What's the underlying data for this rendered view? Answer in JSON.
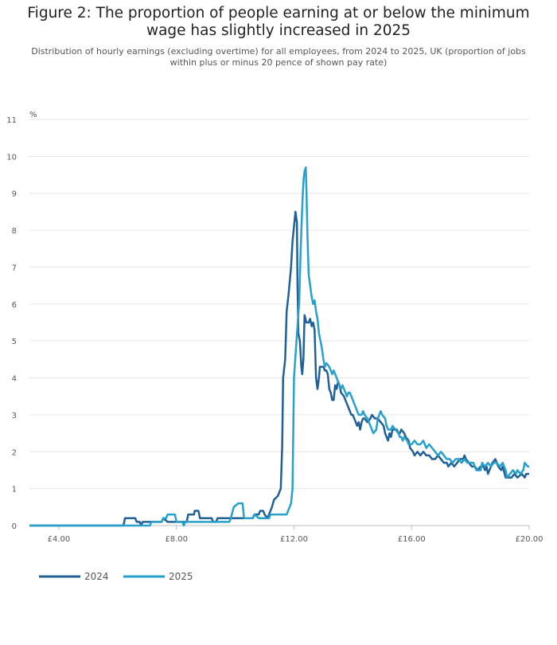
{
  "header": {
    "title": "Figure 2: The proportion of people earning at or below the minimum wage has slightly increased in 2025",
    "subtitle": "Distribution of hourly earnings (excluding overtime) for all employees, from 2024 to 2025, UK (proportion of jobs within plus or minus 20 pence of shown pay rate)"
  },
  "colors": {
    "2024": "#206095",
    "2025": "#27a0cc"
  },
  "chart_data": {
    "type": "line",
    "title": "Figure 2: The proportion of people earning at or below the minimum wage has slightly increased in 2025",
    "ylabel": "%",
    "xlim": [
      3,
      20
    ],
    "ylim": [
      0,
      11
    ],
    "y_ticks": [
      0,
      1,
      2,
      3,
      4,
      5,
      6,
      7,
      8,
      9,
      10,
      11
    ],
    "x_ticks": [
      {
        "value": 4,
        "label": "£4.00"
      },
      {
        "value": 8,
        "label": "£8.00"
      },
      {
        "value": 12,
        "label": "£12.00"
      },
      {
        "value": 16,
        "label": "£16.00"
      },
      {
        "value": 20,
        "label": "£20.00"
      }
    ],
    "legend": [
      "2024",
      "2025"
    ],
    "series": [
      {
        "name": "2024",
        "points": [
          [
            3.0,
            0
          ],
          [
            6.2,
            0
          ],
          [
            6.25,
            0.2
          ],
          [
            6.6,
            0.2
          ],
          [
            6.65,
            0.1
          ],
          [
            6.75,
            0.1
          ],
          [
            6.8,
            0
          ],
          [
            6.85,
            0.1
          ],
          [
            7.5,
            0.1
          ],
          [
            7.55,
            0.2
          ],
          [
            7.7,
            0.1
          ],
          [
            8.35,
            0.1
          ],
          [
            8.4,
            0.3
          ],
          [
            8.6,
            0.3
          ],
          [
            8.62,
            0.4
          ],
          [
            8.75,
            0.4
          ],
          [
            8.8,
            0.2
          ],
          [
            9.2,
            0.2
          ],
          [
            9.25,
            0.1
          ],
          [
            9.35,
            0.1
          ],
          [
            9.4,
            0.2
          ],
          [
            10.0,
            0.2
          ],
          [
            10.6,
            0.2
          ],
          [
            10.65,
            0.3
          ],
          [
            10.8,
            0.3
          ],
          [
            10.85,
            0.4
          ],
          [
            10.95,
            0.4
          ],
          [
            11.0,
            0.3
          ],
          [
            11.1,
            0.2
          ],
          [
            11.15,
            0.3
          ],
          [
            11.25,
            0.5
          ],
          [
            11.32,
            0.7
          ],
          [
            11.45,
            0.8
          ],
          [
            11.55,
            1.0
          ],
          [
            11.6,
            2.2
          ],
          [
            11.63,
            4.0
          ],
          [
            11.7,
            4.5
          ],
          [
            11.75,
            5.8
          ],
          [
            11.82,
            6.3
          ],
          [
            11.9,
            7.0
          ],
          [
            11.95,
            7.7
          ],
          [
            12.0,
            8.1
          ],
          [
            12.05,
            8.5
          ],
          [
            12.1,
            8.2
          ],
          [
            12.12,
            6.5
          ],
          [
            12.15,
            5.2
          ],
          [
            12.2,
            5.0
          ],
          [
            12.25,
            4.3
          ],
          [
            12.28,
            4.1
          ],
          [
            12.32,
            4.5
          ],
          [
            12.36,
            5.7
          ],
          [
            12.42,
            5.5
          ],
          [
            12.5,
            5.5
          ],
          [
            12.55,
            5.6
          ],
          [
            12.6,
            5.4
          ],
          [
            12.65,
            5.5
          ],
          [
            12.7,
            5.3
          ],
          [
            12.75,
            4.0
          ],
          [
            12.8,
            3.7
          ],
          [
            12.85,
            4.0
          ],
          [
            12.88,
            4.3
          ],
          [
            13.0,
            4.3
          ],
          [
            13.05,
            4.2
          ],
          [
            13.1,
            4.2
          ],
          [
            13.15,
            4.1
          ],
          [
            13.2,
            3.7
          ],
          [
            13.25,
            3.6
          ],
          [
            13.3,
            3.4
          ],
          [
            13.35,
            3.4
          ],
          [
            13.4,
            3.8
          ],
          [
            13.45,
            3.7
          ],
          [
            13.5,
            3.9
          ],
          [
            13.55,
            3.8
          ],
          [
            13.6,
            3.6
          ],
          [
            13.7,
            3.5
          ],
          [
            13.75,
            3.4
          ],
          [
            13.8,
            3.3
          ],
          [
            13.85,
            3.2
          ],
          [
            13.9,
            3.1
          ],
          [
            13.95,
            3.0
          ],
          [
            14.0,
            3.0
          ],
          [
            14.05,
            2.9
          ],
          [
            14.1,
            2.8
          ],
          [
            14.15,
            2.7
          ],
          [
            14.2,
            2.8
          ],
          [
            14.25,
            2.6
          ],
          [
            14.3,
            2.8
          ],
          [
            14.35,
            2.9
          ],
          [
            14.4,
            2.9
          ],
          [
            14.5,
            2.8
          ],
          [
            14.6,
            2.9
          ],
          [
            14.65,
            3.0
          ],
          [
            14.75,
            2.9
          ],
          [
            14.85,
            2.9
          ],
          [
            14.95,
            2.8
          ],
          [
            15.05,
            2.7
          ],
          [
            15.1,
            2.5
          ],
          [
            15.15,
            2.4
          ],
          [
            15.2,
            2.3
          ],
          [
            15.25,
            2.5
          ],
          [
            15.3,
            2.4
          ],
          [
            15.35,
            2.6
          ],
          [
            15.5,
            2.6
          ],
          [
            15.55,
            2.5
          ],
          [
            15.6,
            2.5
          ],
          [
            15.65,
            2.6
          ],
          [
            15.75,
            2.5
          ],
          [
            15.8,
            2.4
          ],
          [
            15.9,
            2.3
          ],
          [
            15.95,
            2.1
          ],
          [
            16.05,
            2.0
          ],
          [
            16.1,
            1.9
          ],
          [
            16.2,
            2.0
          ],
          [
            16.3,
            1.9
          ],
          [
            16.4,
            2.0
          ],
          [
            16.5,
            1.9
          ],
          [
            16.6,
            1.9
          ],
          [
            16.7,
            1.8
          ],
          [
            16.8,
            1.8
          ],
          [
            16.9,
            1.9
          ],
          [
            17.0,
            1.8
          ],
          [
            17.1,
            1.7
          ],
          [
            17.2,
            1.7
          ],
          [
            17.25,
            1.6
          ],
          [
            17.35,
            1.7
          ],
          [
            17.45,
            1.6
          ],
          [
            17.55,
            1.7
          ],
          [
            17.65,
            1.8
          ],
          [
            17.75,
            1.8
          ],
          [
            17.8,
            1.9
          ],
          [
            17.85,
            1.8
          ],
          [
            17.95,
            1.7
          ],
          [
            18.05,
            1.6
          ],
          [
            18.15,
            1.6
          ],
          [
            18.25,
            1.5
          ],
          [
            18.35,
            1.6
          ],
          [
            18.45,
            1.6
          ],
          [
            18.5,
            1.5
          ],
          [
            18.55,
            1.6
          ],
          [
            18.6,
            1.4
          ],
          [
            18.7,
            1.6
          ],
          [
            18.75,
            1.7
          ],
          [
            18.85,
            1.8
          ],
          [
            18.9,
            1.7
          ],
          [
            18.95,
            1.6
          ],
          [
            19.05,
            1.5
          ],
          [
            19.1,
            1.6
          ],
          [
            19.2,
            1.3
          ],
          [
            19.4,
            1.3
          ],
          [
            19.5,
            1.4
          ],
          [
            19.6,
            1.3
          ],
          [
            19.75,
            1.4
          ],
          [
            19.85,
            1.3
          ],
          [
            19.9,
            1.4
          ],
          [
            20.0,
            1.4
          ]
        ]
      },
      {
        "name": "2025",
        "points": [
          [
            3.0,
            0
          ],
          [
            6.8,
            0
          ],
          [
            7.1,
            0
          ],
          [
            7.15,
            0.1
          ],
          [
            7.5,
            0.1
          ],
          [
            7.55,
            0.2
          ],
          [
            7.65,
            0.2
          ],
          [
            7.7,
            0.3
          ],
          [
            7.95,
            0.3
          ],
          [
            8.0,
            0.1
          ],
          [
            8.2,
            0.1
          ],
          [
            8.25,
            0
          ],
          [
            8.3,
            0.1
          ],
          [
            9.6,
            0.1
          ],
          [
            9.8,
            0.1
          ],
          [
            9.85,
            0.2
          ],
          [
            9.95,
            0.5
          ],
          [
            10.1,
            0.6
          ],
          [
            10.25,
            0.6
          ],
          [
            10.3,
            0.2
          ],
          [
            10.6,
            0.2
          ],
          [
            10.65,
            0.3
          ],
          [
            10.8,
            0.2
          ],
          [
            11.0,
            0.2
          ],
          [
            11.15,
            0.2
          ],
          [
            11.2,
            0.3
          ],
          [
            11.5,
            0.3
          ],
          [
            11.75,
            0.3
          ],
          [
            11.8,
            0.4
          ],
          [
            11.85,
            0.5
          ],
          [
            11.9,
            0.6
          ],
          [
            11.95,
            1.0
          ],
          [
            12.0,
            4.0
          ],
          [
            12.05,
            4.6
          ],
          [
            12.12,
            5.4
          ],
          [
            12.18,
            6.1
          ],
          [
            12.22,
            7.3
          ],
          [
            12.26,
            8.2
          ],
          [
            12.3,
            9.0
          ],
          [
            12.33,
            9.4
          ],
          [
            12.36,
            9.6
          ],
          [
            12.4,
            9.7
          ],
          [
            12.42,
            9.2
          ],
          [
            12.46,
            7.8
          ],
          [
            12.5,
            6.8
          ],
          [
            12.55,
            6.5
          ],
          [
            12.6,
            6.2
          ],
          [
            12.65,
            6.0
          ],
          [
            12.7,
            6.1
          ],
          [
            12.75,
            5.8
          ],
          [
            12.8,
            5.6
          ],
          [
            12.85,
            5.2
          ],
          [
            12.9,
            5.0
          ],
          [
            12.95,
            4.8
          ],
          [
            13.0,
            4.5
          ],
          [
            13.05,
            4.3
          ],
          [
            13.1,
            4.4
          ],
          [
            13.2,
            4.3
          ],
          [
            13.25,
            4.2
          ],
          [
            13.3,
            4.1
          ],
          [
            13.35,
            4.2
          ],
          [
            13.4,
            4.1
          ],
          [
            13.45,
            4.0
          ],
          [
            13.5,
            3.9
          ],
          [
            13.55,
            3.8
          ],
          [
            13.6,
            3.7
          ],
          [
            13.65,
            3.8
          ],
          [
            13.7,
            3.7
          ],
          [
            13.75,
            3.6
          ],
          [
            13.8,
            3.5
          ],
          [
            13.85,
            3.6
          ],
          [
            13.9,
            3.6
          ],
          [
            13.95,
            3.5
          ],
          [
            14.0,
            3.4
          ],
          [
            14.05,
            3.3
          ],
          [
            14.1,
            3.2
          ],
          [
            14.15,
            3.1
          ],
          [
            14.2,
            3.0
          ],
          [
            14.3,
            3.0
          ],
          [
            14.35,
            3.1
          ],
          [
            14.4,
            3.0
          ],
          [
            14.5,
            2.9
          ],
          [
            14.55,
            2.8
          ],
          [
            14.6,
            2.7
          ],
          [
            14.65,
            2.6
          ],
          [
            14.7,
            2.5
          ],
          [
            14.8,
            2.6
          ],
          [
            14.85,
            2.9
          ],
          [
            14.9,
            3.0
          ],
          [
            14.95,
            3.1
          ],
          [
            15.0,
            3.0
          ],
          [
            15.1,
            2.9
          ],
          [
            15.15,
            2.7
          ],
          [
            15.2,
            2.6
          ],
          [
            15.3,
            2.6
          ],
          [
            15.35,
            2.7
          ],
          [
            15.45,
            2.6
          ],
          [
            15.55,
            2.5
          ],
          [
            15.6,
            2.4
          ],
          [
            15.65,
            2.4
          ],
          [
            15.7,
            2.3
          ],
          [
            15.75,
            2.4
          ],
          [
            15.85,
            2.3
          ],
          [
            15.9,
            2.2
          ],
          [
            16.0,
            2.2
          ],
          [
            16.1,
            2.3
          ],
          [
            16.2,
            2.2
          ],
          [
            16.3,
            2.2
          ],
          [
            16.4,
            2.3
          ],
          [
            16.5,
            2.1
          ],
          [
            16.6,
            2.2
          ],
          [
            16.7,
            2.1
          ],
          [
            16.8,
            2.0
          ],
          [
            16.9,
            1.9
          ],
          [
            17.0,
            2.0
          ],
          [
            17.1,
            1.9
          ],
          [
            17.2,
            1.8
          ],
          [
            17.3,
            1.8
          ],
          [
            17.4,
            1.7
          ],
          [
            17.5,
            1.8
          ],
          [
            17.6,
            1.8
          ],
          [
            17.7,
            1.7
          ],
          [
            17.8,
            1.8
          ],
          [
            17.9,
            1.7
          ],
          [
            18.0,
            1.7
          ],
          [
            18.1,
            1.7
          ],
          [
            18.2,
            1.5
          ],
          [
            18.35,
            1.5
          ],
          [
            18.4,
            1.7
          ],
          [
            18.5,
            1.6
          ],
          [
            18.6,
            1.7
          ],
          [
            18.7,
            1.6
          ],
          [
            18.8,
            1.7
          ],
          [
            18.9,
            1.7
          ],
          [
            19.0,
            1.6
          ],
          [
            19.1,
            1.7
          ],
          [
            19.2,
            1.5
          ],
          [
            19.25,
            1.3
          ],
          [
            19.35,
            1.4
          ],
          [
            19.45,
            1.5
          ],
          [
            19.55,
            1.4
          ],
          [
            19.6,
            1.5
          ],
          [
            19.7,
            1.4
          ],
          [
            19.8,
            1.5
          ],
          [
            19.85,
            1.7
          ],
          [
            19.95,
            1.6
          ],
          [
            20.0,
            1.6
          ]
        ]
      }
    ]
  }
}
